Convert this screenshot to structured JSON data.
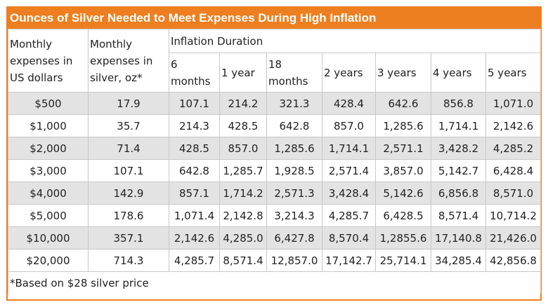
{
  "title": "Ounces of Silver Needed to Meet Expenses During High Inflation",
  "headers": {
    "col1": "Monthly expenses in US dollars",
    "col2": "Monthly expenses in silver, oz*",
    "group": "Inflation Duration",
    "durations": [
      "6 months",
      "1 year",
      "18 months",
      "2 years",
      "3 years",
      "4 years",
      "5 years"
    ]
  },
  "rows": [
    {
      "dollars": "$500",
      "silver": "17.9",
      "values": [
        "107.1",
        "214.2",
        "321.3",
        "428.4",
        "642.6",
        "856.8",
        "1,071.0"
      ]
    },
    {
      "dollars": "$1,000",
      "silver": "35.7",
      "values": [
        "214.3",
        "428.5",
        "642.8",
        "857.0",
        "1,285.6",
        "1,714.1",
        "2,142.6"
      ]
    },
    {
      "dollars": "$2,000",
      "silver": "71.4",
      "values": [
        "428.5",
        "857.0",
        "1,285.6",
        "1,714.1",
        "2,571.1",
        "3,428.2",
        "4,285.2"
      ]
    },
    {
      "dollars": "$3,000",
      "silver": "107.1",
      "values": [
        "642.8",
        "1,285.7",
        "1,928.5",
        "2,571.4",
        "3,857.0",
        "5,142.7",
        "6,428.4"
      ]
    },
    {
      "dollars": "$4,000",
      "silver": "142.9",
      "values": [
        "857.1",
        "1,714.2",
        "2,571.3",
        "3,428.4",
        "5,142.6",
        "6,856.8",
        "8,571.0"
      ]
    },
    {
      "dollars": "$5,000",
      "silver": "178.6",
      "values": [
        "1,071.4",
        "2,142.8",
        "3,214.3",
        "4,285.7",
        "6,428.5",
        "8,571.4",
        "10,714.2"
      ]
    },
    {
      "dollars": "$10,000",
      "silver": "357.1",
      "values": [
        "2,142.6",
        "4,285.0",
        "6,427.8",
        "8,570.4",
        "1,2855.6",
        "17,140.8",
        "21,426.0"
      ]
    },
    {
      "dollars": "$20,000",
      "silver": "714.3",
      "values": [
        "4,285.7",
        "8,571.4",
        "12,857.0",
        "17,142.7",
        "25,714.1",
        "34,285.4",
        "42,856.8"
      ]
    }
  ],
  "footnote": "*Based on $28 silver price",
  "colors": {
    "accent": "#ee7f20",
    "shade": "#e3e3e3",
    "border": "#c8c8c8"
  }
}
